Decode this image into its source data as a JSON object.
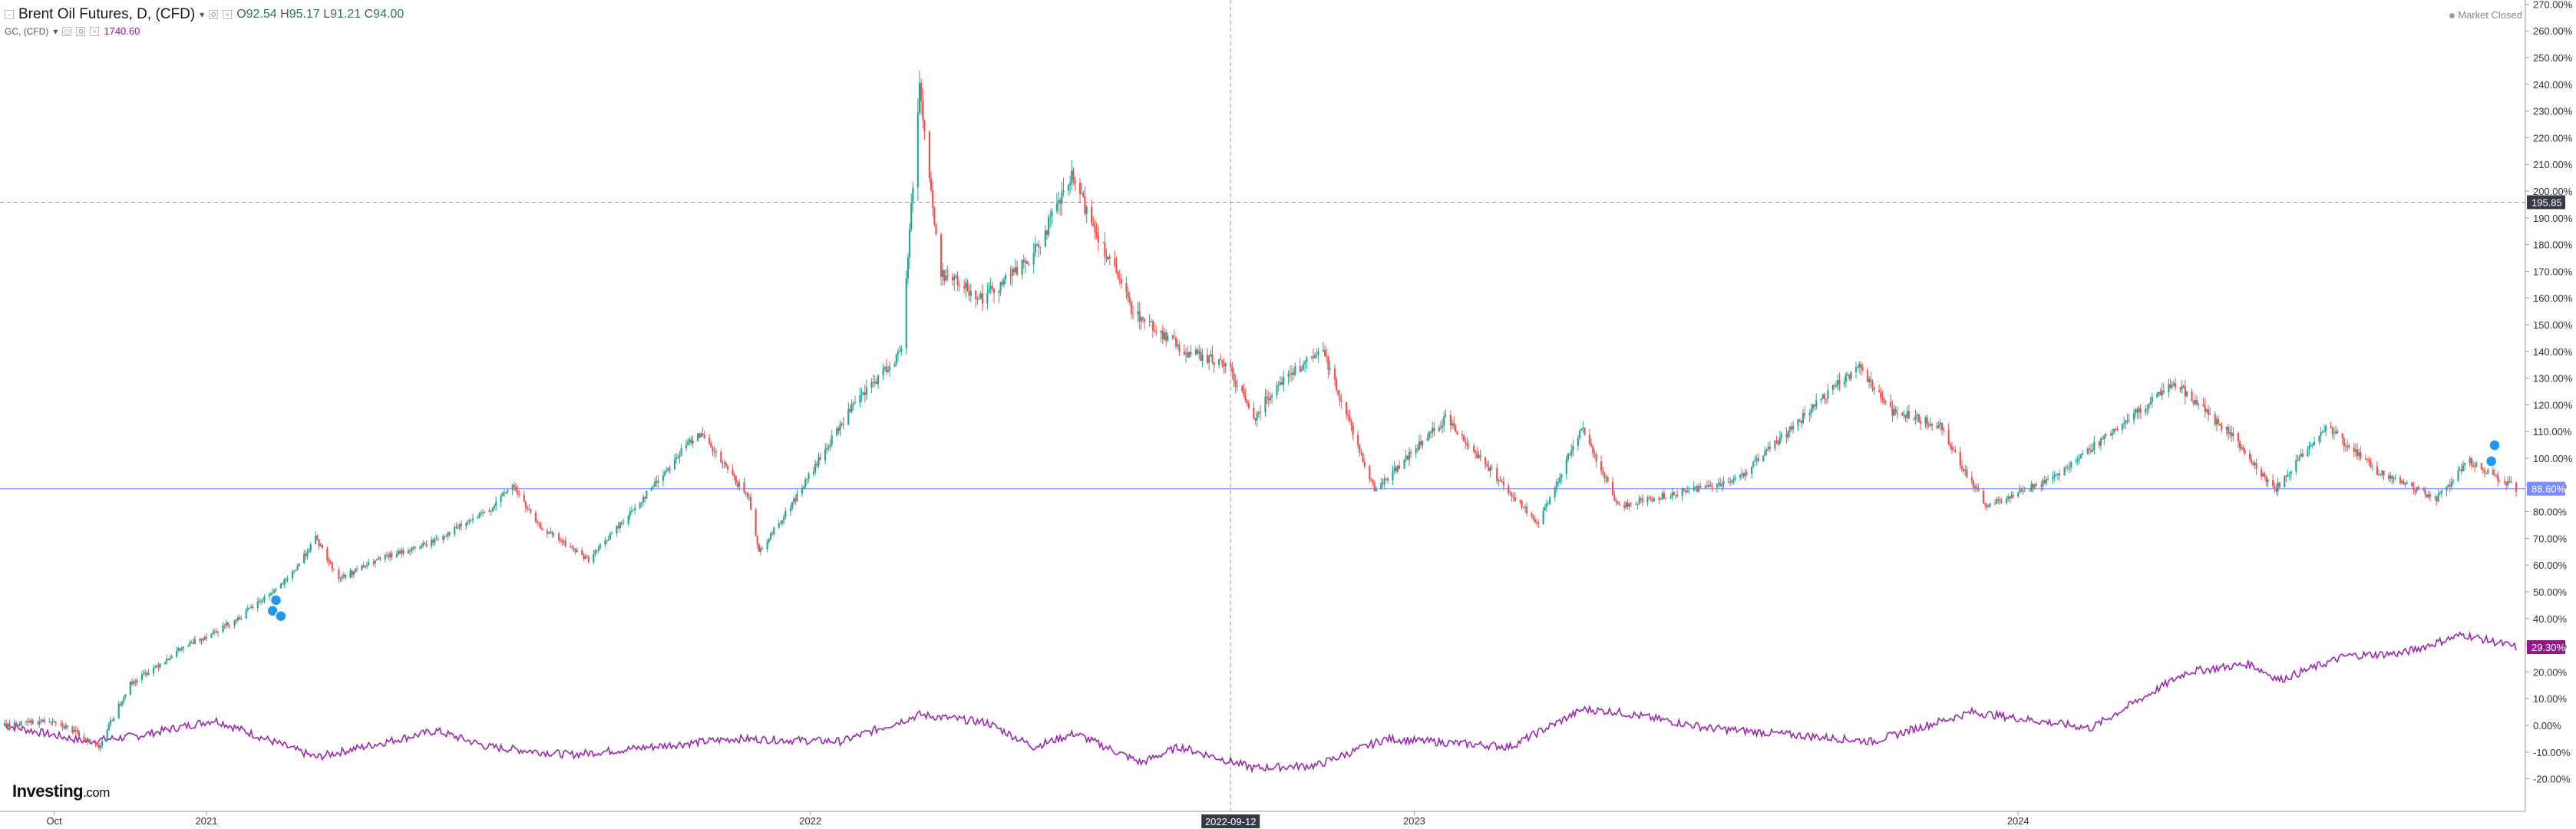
{
  "legend": {
    "symbol_title": "Brent Oil Futures, D, (CFD)",
    "ohlc": {
      "o_label": "O",
      "o": "92.54",
      "h_label": "H",
      "h": "95.17",
      "l_label": "L",
      "l": "91.21",
      "c_label": "C",
      "c": "94.00"
    },
    "compare_symbol": "GC, (CFD)",
    "compare_value": "1740.60"
  },
  "status": {
    "market_closed": "Market Closed"
  },
  "logo": {
    "name": "Investing",
    "suffix": ".com"
  },
  "crosshair": {
    "date_label": "2022-09-12",
    "price_label": "195.85"
  },
  "colors": {
    "up": "#26a69a",
    "down": "#ef5350",
    "gold": "#9c27b0",
    "baseline": "#7a8cff",
    "gold_badge": "#8e1a8e"
  },
  "chart_data": {
    "type": "line",
    "title": "Brent Oil Futures, D, (CFD)",
    "xlabel": "",
    "ylabel": "",
    "y_unit": "percent change",
    "ylim": [
      -20,
      270
    ],
    "y_ticks": [
      "270.00%",
      "260.00%",
      "250.00%",
      "240.00%",
      "230.00%",
      "220.00%",
      "210.00%",
      "200.00%",
      "190.00%",
      "180.00%",
      "170.00%",
      "160.00%",
      "150.00%",
      "140.00%",
      "130.00%",
      "120.00%",
      "110.00%",
      "100.00%",
      "90.00%",
      "80.00%",
      "70.00%",
      "60.00%",
      "50.00%",
      "40.00%",
      "30.00%",
      "20.00%",
      "10.00%",
      "0.00%",
      "-10.00%",
      "-20.00%"
    ],
    "x_ticks": [
      {
        "label": "Oct",
        "date": "2020-10-01"
      },
      {
        "label": "2021",
        "date": "2021-01-01"
      },
      {
        "label": "2022",
        "date": "2022-01-01"
      },
      {
        "label": "2023",
        "date": "2023-01-01"
      },
      {
        "label": "2024",
        "date": "2024-01-01"
      }
    ],
    "x_range": [
      "2020-09-01",
      "2024-10-28"
    ],
    "grid": false,
    "series": [
      {
        "name": "Brent Oil Futures, D, (CFD)",
        "style": "candlestick",
        "last_value_label": "88.60%",
        "points": [
          [
            "2020-09-01",
            0
          ],
          [
            "2020-10-01",
            2
          ],
          [
            "2020-10-28",
            -8
          ],
          [
            "2020-11-15",
            15
          ],
          [
            "2020-12-15",
            28
          ],
          [
            "2021-01-20",
            40
          ],
          [
            "2021-02-20",
            55
          ],
          [
            "2021-03-08",
            70
          ],
          [
            "2021-03-22",
            55
          ],
          [
            "2021-04-15",
            62
          ],
          [
            "2021-05-15",
            68
          ],
          [
            "2021-06-20",
            80
          ],
          [
            "2021-07-05",
            90
          ],
          [
            "2021-07-20",
            75
          ],
          [
            "2021-08-20",
            62
          ],
          [
            "2021-09-15",
            80
          ],
          [
            "2021-10-25",
            110
          ],
          [
            "2021-11-25",
            85
          ],
          [
            "2021-12-01",
            65
          ],
          [
            "2021-12-20",
            82
          ],
          [
            "2022-01-25",
            118
          ],
          [
            "2022-02-25",
            140
          ],
          [
            "2022-03-08",
            240
          ],
          [
            "2022-03-20",
            170
          ],
          [
            "2022-04-15",
            160
          ],
          [
            "2022-05-15",
            175
          ],
          [
            "2022-06-08",
            205
          ],
          [
            "2022-07-15",
            155
          ],
          [
            "2022-08-15",
            140
          ],
          [
            "2022-09-10",
            135
          ],
          [
            "2022-09-26",
            115
          ],
          [
            "2022-10-10",
            128
          ],
          [
            "2022-11-07",
            140
          ],
          [
            "2022-12-08",
            88
          ],
          [
            "2023-01-20",
            115
          ],
          [
            "2023-03-17",
            75
          ],
          [
            "2023-04-12",
            112
          ],
          [
            "2023-05-04",
            82
          ],
          [
            "2023-06-15",
            88
          ],
          [
            "2023-07-15",
            92
          ],
          [
            "2023-09-27",
            135
          ],
          [
            "2023-10-15",
            118
          ],
          [
            "2023-11-15",
            112
          ],
          [
            "2023-12-12",
            82
          ],
          [
            "2024-01-20",
            92
          ],
          [
            "2024-04-05",
            128
          ],
          [
            "2024-05-10",
            108
          ],
          [
            "2024-06-04",
            88
          ],
          [
            "2024-07-05",
            112
          ],
          [
            "2024-08-05",
            95
          ],
          [
            "2024-09-10",
            85
          ],
          [
            "2024-09-30",
            99
          ],
          [
            "2024-10-28",
            88.6
          ]
        ]
      },
      {
        "name": "GC, (CFD)",
        "style": "line",
        "last_value_label": "29.30%",
        "points": [
          [
            "2020-09-01",
            0
          ],
          [
            "2020-10-20",
            -6
          ],
          [
            "2020-11-20",
            -4
          ],
          [
            "2021-01-06",
            2
          ],
          [
            "2021-03-08",
            -12
          ],
          [
            "2021-05-20",
            -2
          ],
          [
            "2021-06-20",
            -8
          ],
          [
            "2021-08-09",
            -11
          ],
          [
            "2021-11-16",
            -5
          ],
          [
            "2022-01-20",
            -6
          ],
          [
            "2022-03-08",
            4
          ],
          [
            "2022-04-18",
            1
          ],
          [
            "2022-05-16",
            -8
          ],
          [
            "2022-06-10",
            -3
          ],
          [
            "2022-07-20",
            -14
          ],
          [
            "2022-08-12",
            -8
          ],
          [
            "2022-09-26",
            -16
          ],
          [
            "2022-11-03",
            -15
          ],
          [
            "2022-12-15",
            -5
          ],
          [
            "2023-02-28",
            -8
          ],
          [
            "2023-04-13",
            6
          ],
          [
            "2023-05-04",
            5
          ],
          [
            "2023-06-28",
            -1
          ],
          [
            "2023-10-05",
            -6
          ],
          [
            "2023-12-04",
            5
          ],
          [
            "2024-02-14",
            -1
          ],
          [
            "2024-04-12",
            20
          ],
          [
            "2024-05-20",
            23
          ],
          [
            "2024-06-07",
            17
          ],
          [
            "2024-07-17",
            26
          ],
          [
            "2024-08-20",
            27
          ],
          [
            "2024-09-26",
            34
          ],
          [
            "2024-10-28",
            29.3
          ]
        ]
      }
    ]
  }
}
